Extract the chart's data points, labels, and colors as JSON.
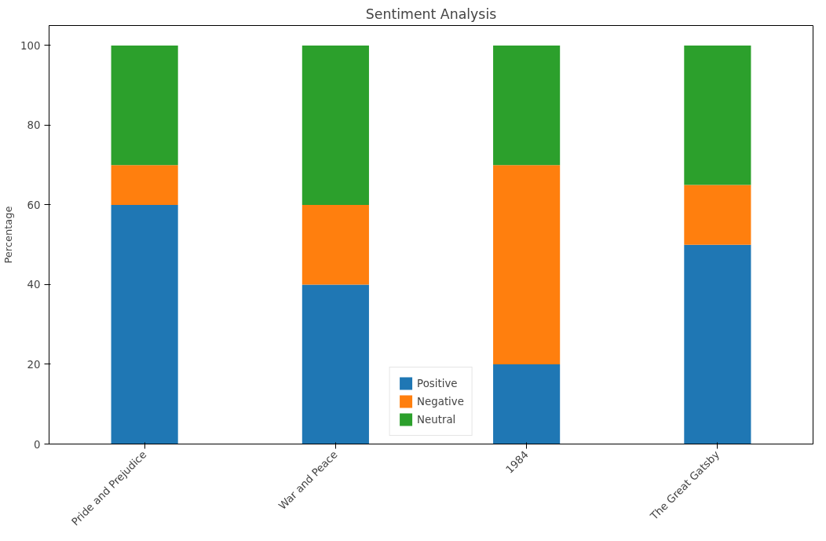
{
  "chart_data": {
    "type": "bar",
    "title": "Sentiment Analysis",
    "ylabel": "Percentage",
    "stacked": true,
    "categories": [
      "Pride and Prejudice",
      "War and Peace",
      "1984",
      "The Great Gatsby"
    ],
    "series": [
      {
        "name": "Positive",
        "color": "#1f77b4",
        "values": [
          60,
          40,
          20,
          50
        ]
      },
      {
        "name": "Negative",
        "color": "#ff7f0e",
        "values": [
          10,
          20,
          50,
          15
        ]
      },
      {
        "name": "Neutral",
        "color": "#2ca02c",
        "values": [
          30,
          40,
          30,
          35
        ]
      }
    ],
    "ylim": [
      0,
      105
    ],
    "yticks": [
      0,
      20,
      40,
      60,
      80,
      100
    ],
    "grid": false,
    "legend": "bottom"
  }
}
